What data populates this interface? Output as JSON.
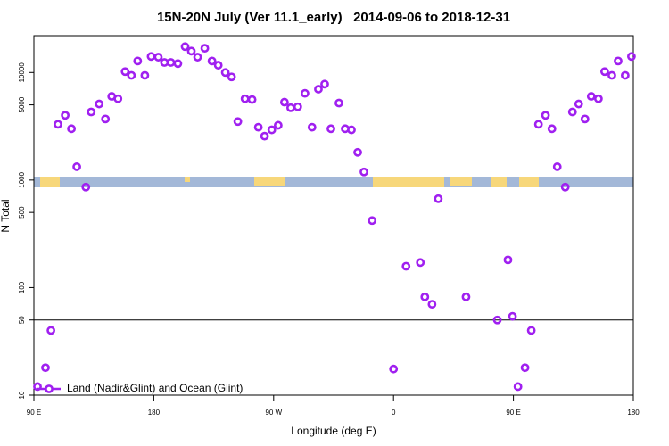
{
  "chart_data": {
    "type": "scatter",
    "title": "15N-20N July (Ver 11.1_early)   2014-09-06 to 2018-12-31",
    "x_label": "Longitude (deg E)",
    "y_label": "N Total",
    "log_y": true,
    "xlim": [
      90,
      540
    ],
    "ylim": [
      10,
      22000
    ],
    "xticks": [
      {
        "value": 90,
        "label": "90 E"
      },
      180,
      {
        "value": 270,
        "label": "90 W"
      },
      {
        "value": 360,
        "label": "0"
      },
      {
        "value": 450,
        "label": "90 E"
      },
      {
        "value": 540,
        "label": "180"
      }
    ],
    "yticks": [
      10,
      50,
      100,
      500,
      1000,
      5000,
      10000
    ],
    "hline": 50,
    "legend": "bottom-left",
    "x": [
      92.7,
      98.7,
      102.8,
      108.1,
      113.5,
      118.2,
      122.2,
      129,
      133,
      139,
      143.7,
      148.4,
      153.1,
      158.5,
      163.2,
      167.9,
      173.3,
      178,
      183.4,
      188,
      192.8,
      198.1,
      203.5,
      208.2,
      212.9,
      218.3,
      223.7,
      228.4,
      233.7,
      238.4,
      243.1,
      248.5,
      253.8,
      258.5,
      263.2,
      268.6,
      273.4,
      278.1,
      282.8,
      288.1,
      293.5,
      298.8,
      303.6,
      308.3,
      313,
      319,
      323.7,
      328.4,
      333.1,
      337.8,
      343.9,
      360,
      369.4,
      380.1,
      383.5,
      388.9,
      393.6,
      414.4,
      437.9,
      445.9,
      449.3,
      453.4,
      458.7,
      463.4,
      468.8,
      474.1,
      478.9,
      482.9,
      488.9,
      494.3,
      499,
      503.7,
      508.4,
      513.8,
      518.5,
      523.9,
      528.6,
      533.9,
      538.6
    ],
    "series": [
      {
        "name": "Land (Nadir&Glint) and Ocean (Glint)",
        "color": "#a020f0",
        "values": [
          12,
          18,
          40,
          3300,
          4000,
          3000,
          1330,
          860,
          4300,
          5100,
          3700,
          6000,
          5700,
          10200,
          9400,
          12800,
          9400,
          14100,
          13900,
          12400,
          12400,
          12100,
          17400,
          15800,
          13900,
          16800,
          12800,
          11700,
          10000,
          9100,
          3500,
          5700,
          5600,
          3100,
          2560,
          2930,
          3230,
          5300,
          4700,
          4800,
          6400,
          3100,
          7000,
          7800,
          3000,
          5200,
          3000,
          2930,
          1810,
          1190,
          420,
          17.5,
          158,
          171,
          82,
          70,
          670,
          82,
          50,
          181,
          54,
          12,
          18,
          40,
          3300,
          4000,
          3000,
          1330,
          860,
          4300,
          5100,
          3700,
          6000,
          5700,
          10200,
          9400,
          12800,
          9400,
          14100
        ]
      }
    ]
  }
}
